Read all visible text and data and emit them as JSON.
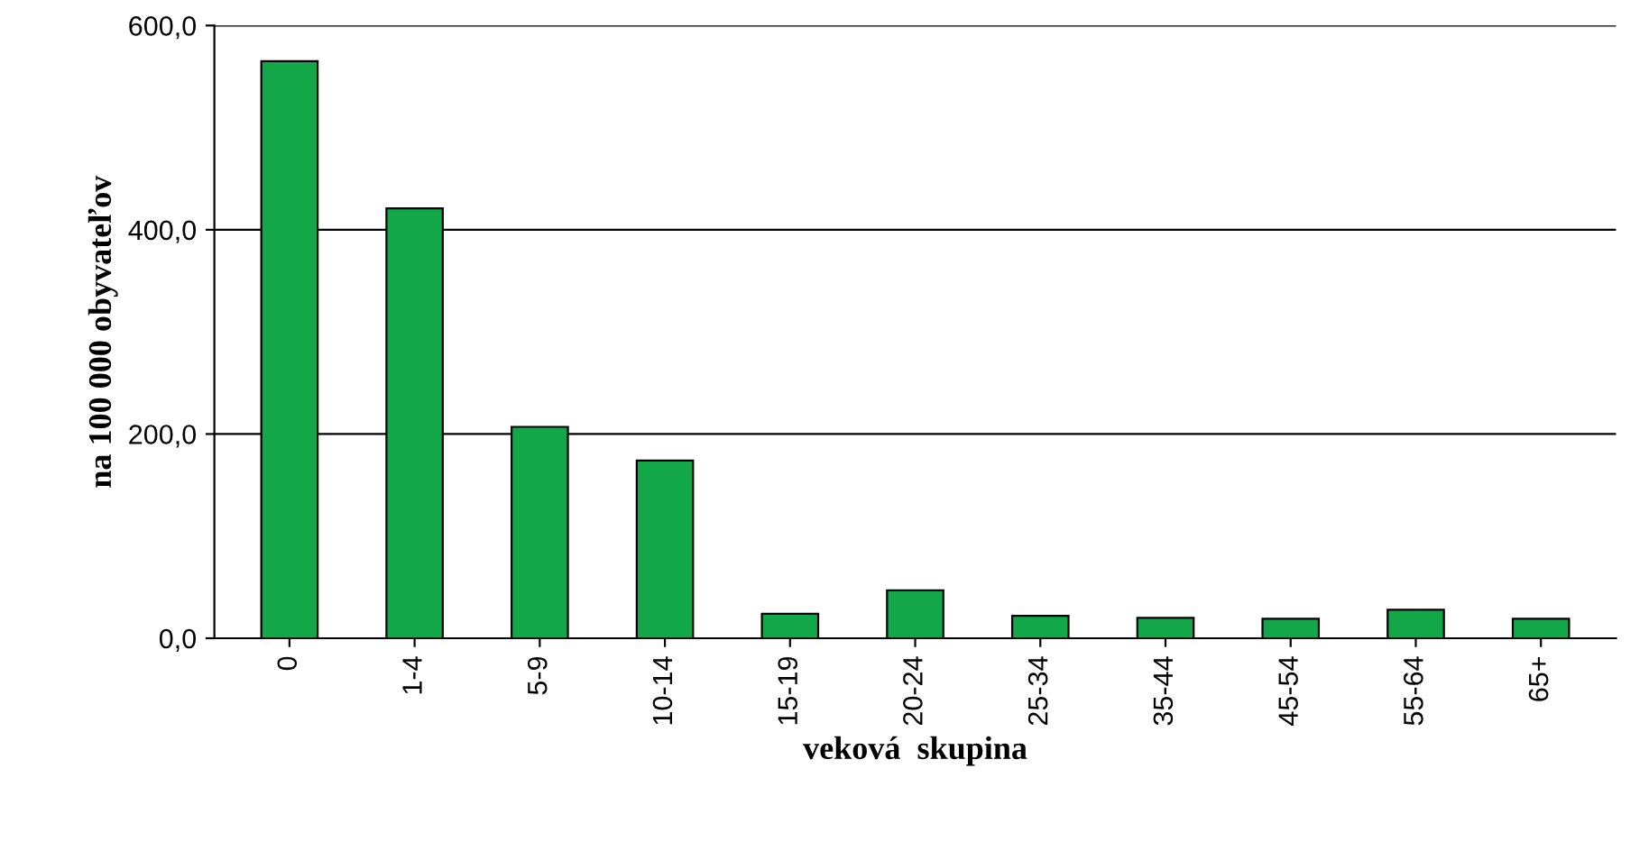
{
  "chart_data": {
    "type": "bar",
    "xlabel": "veková  skupina",
    "ylabel": "na 100 000 obyvateľov",
    "categories": [
      "0",
      "1-4",
      "5-9",
      "10-14",
      "15-19",
      "20-24",
      "25-34",
      "35-44",
      "45-54",
      "55-64",
      "65+"
    ],
    "values": [
      565,
      421,
      207,
      174,
      24,
      47,
      22,
      20,
      19,
      28,
      19
    ],
    "color": "#12a84a",
    "ylim": [
      0,
      600
    ],
    "yticks": [
      {
        "value": 0,
        "label": "0,0"
      },
      {
        "value": 200,
        "label": "200,0"
      },
      {
        "value": 400,
        "label": "400,0"
      },
      {
        "value": 600,
        "label": "600,0"
      }
    ],
    "grid": "y"
  }
}
